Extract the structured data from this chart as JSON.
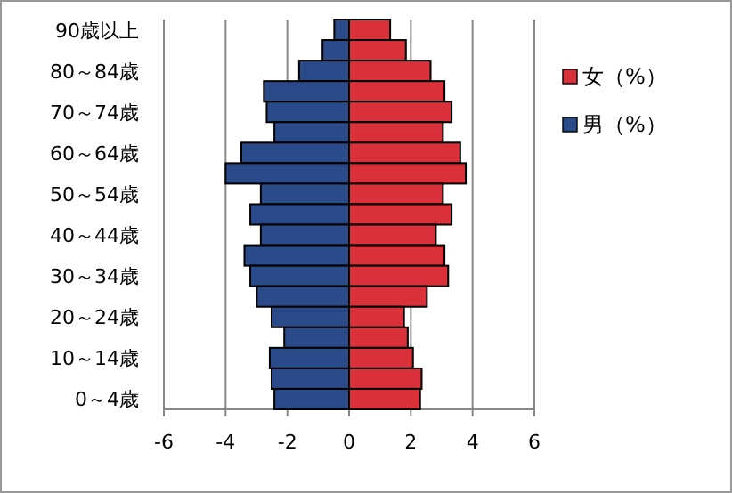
{
  "chart_data": {
    "type": "bar",
    "orientation": "horizontal",
    "stacked": true,
    "categories": [
      "90歳以上",
      null,
      "80～84歳",
      null,
      "70～74歳",
      null,
      "60～64歳",
      null,
      "50～54歳",
      null,
      "40～44歳",
      null,
      "30～34歳",
      null,
      "20～24歳",
      null,
      "10～14歳",
      null,
      "0～4歳"
    ],
    "series": [
      {
        "name": "女（%）",
        "color": "#d9303a",
        "values": [
          1.33,
          1.84,
          2.64,
          3.09,
          3.32,
          3.04,
          3.6,
          3.78,
          3.04,
          3.32,
          2.81,
          3.09,
          3.21,
          2.52,
          1.78,
          1.9,
          2.07,
          2.35,
          2.3
        ]
      },
      {
        "name": "男（%）",
        "color": "#2b4a8a",
        "values": [
          -0.48,
          -0.86,
          -1.62,
          -2.76,
          -2.67,
          -2.42,
          -3.49,
          -4.0,
          -2.86,
          -3.2,
          -2.86,
          -3.39,
          -3.2,
          -2.99,
          -2.51,
          -2.1,
          -2.57,
          -2.51,
          -2.42
        ]
      }
    ],
    "xlim": [
      -6,
      6
    ],
    "xticks": [
      -6,
      -4,
      -2,
      0,
      2,
      4,
      6
    ],
    "grid": "x",
    "legend": "right"
  }
}
